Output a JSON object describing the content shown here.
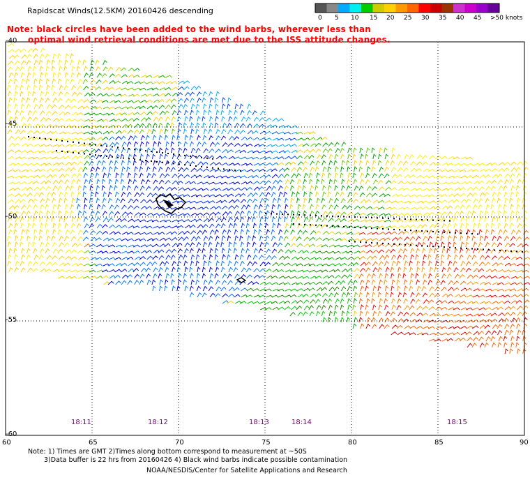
{
  "header": {
    "title": "Rapidscat Winds(12.5KM) 20160426 descending",
    "note_line1": "Note: black circles have been added to the wind barbs, wherever less than",
    "note_line2": "optimal wind retrieval conditions are met due to the ISS attitude changes."
  },
  "legend": {
    "colors": [
      "#555555",
      "#888888",
      "#00aaff",
      "#00eeee",
      "#00cc00",
      "#cccc00",
      "#ffd000",
      "#ff9900",
      "#ff6600",
      "#ff0000",
      "#cc0000",
      "#993300",
      "#cc33cc",
      "#cc00cc",
      "#9900cc",
      "#660099"
    ],
    "labels": [
      "0",
      "5",
      "10",
      "15",
      "20",
      "25",
      "30",
      "35",
      "40",
      "45",
      ">50 knots"
    ]
  },
  "map": {
    "x_axis_labels": [
      "60",
      "65",
      "70",
      "75",
      "80",
      "85",
      "90"
    ],
    "y_axis_labels": [
      "-40",
      "-45",
      "-50",
      "-55",
      "-60"
    ],
    "time_labels": [
      "18:11",
      "18:12",
      "18:13",
      "18:14",
      "18:15"
    ]
  },
  "footer": {
    "line1": "Note: 1) Times are GMT 2)Times along bottom correspond to measurement at ~50S",
    "line2": "3)Data buffer is 22 hrs from 20160426 4) Black wind barbs indicate possible contamination",
    "line3": "NOAA/NESDIS/Center for Satellite Applications and Research"
  }
}
